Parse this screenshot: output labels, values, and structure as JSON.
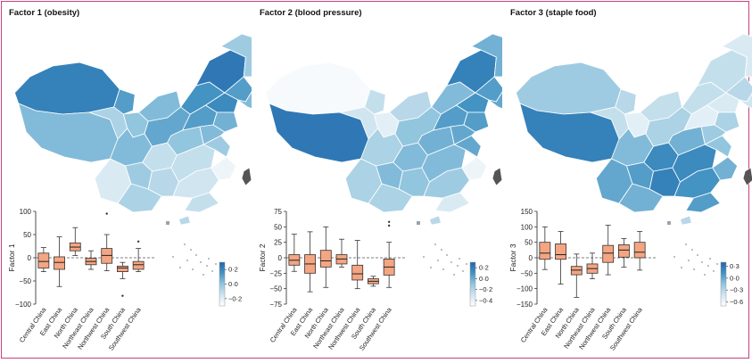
{
  "figure": {
    "accent_border_color": "#c8417e",
    "box_fill_color": "#f4a582",
    "colormap": [
      "#ffffff",
      "#d1e5f0",
      "#92c5de",
      "#4393c3",
      "#2166ac"
    ]
  },
  "chart_data": [
    {
      "type": "box",
      "title": "Factor 1 (obesity)",
      "ylabel": "Factor 1",
      "ylim": [
        -100,
        100
      ],
      "yticks": [
        "100",
        "50",
        "0",
        "−50",
        "−100"
      ],
      "categories": [
        "Central China",
        "East China",
        "North China",
        "Northeast China",
        "Northwest China",
        "South China",
        "Southwest China"
      ],
      "boxes": [
        {
          "min": -30,
          "q1": -22,
          "median": -8,
          "q3": 10,
          "max": 22,
          "outliers": []
        },
        {
          "min": -62,
          "q1": -25,
          "median": -10,
          "q3": 2,
          "max": 45,
          "outliers": []
        },
        {
          "min": 5,
          "q1": 15,
          "median": 23,
          "q3": 32,
          "max": 65,
          "outliers": []
        },
        {
          "min": -25,
          "q1": -15,
          "median": -8,
          "q3": -1,
          "max": 15,
          "outliers": []
        },
        {
          "min": -28,
          "q1": -12,
          "median": 5,
          "q3": 20,
          "max": 50,
          "outliers": [
            95
          ]
        },
        {
          "min": -45,
          "q1": -30,
          "median": -22,
          "q3": -18,
          "max": -10,
          "outliers": [
            -82
          ]
        },
        {
          "min": -30,
          "q1": -25,
          "median": -15,
          "q3": -8,
          "max": 20,
          "outliers": [
            35
          ]
        }
      ],
      "colorbar": {
        "ticks": [
          "0·2",
          "0·0",
          "−0·2"
        ],
        "min": -0.3,
        "max": 0.3
      }
    },
    {
      "type": "box",
      "title": "Factor 2 (blood pressure)",
      "ylabel": "Factor 2",
      "ylim": [
        -75,
        75
      ],
      "yticks": [
        "75",
        "50",
        "25",
        "0",
        "−25",
        "−50",
        "−75"
      ],
      "categories": [
        "Central China",
        "East China",
        "North China",
        "Northeast China",
        "Northwest China",
        "South China",
        "Southwest China"
      ],
      "boxes": [
        {
          "min": -22,
          "q1": -12,
          "median": -4,
          "q3": 5,
          "max": 38,
          "outliers": []
        },
        {
          "min": -55,
          "q1": -25,
          "median": -10,
          "q3": 5,
          "max": 42,
          "outliers": []
        },
        {
          "min": -48,
          "q1": -15,
          "median": -5,
          "q3": 12,
          "max": 50,
          "outliers": []
        },
        {
          "min": -15,
          "q1": -10,
          "median": -2,
          "q3": 5,
          "max": 30,
          "outliers": []
        },
        {
          "min": -50,
          "q1": -36,
          "median": -26,
          "q3": -12,
          "max": 28,
          "outliers": []
        },
        {
          "min": -46,
          "q1": -42,
          "median": -38,
          "q3": -34,
          "max": -30,
          "outliers": []
        },
        {
          "min": -48,
          "q1": -28,
          "median": -15,
          "q3": -2,
          "max": 25,
          "outliers": [
            52,
            58
          ]
        }
      ],
      "colorbar": {
        "ticks": [
          "0·2",
          "0·0",
          "−0·2",
          "−0·4"
        ],
        "min": -0.5,
        "max": 0.3
      }
    },
    {
      "type": "box",
      "title": "Factor 3 (staple food)",
      "ylabel": "Factor 3",
      "ylim": [
        -150,
        150
      ],
      "yticks": [
        "150",
        "100",
        "50",
        "0",
        "−50",
        "−100",
        "−150"
      ],
      "categories": [
        "Central China",
        "East China",
        "North China",
        "Northeast China",
        "Northwest China",
        "South China",
        "Southwest China"
      ],
      "boxes": [
        {
          "min": -38,
          "q1": -5,
          "median": 15,
          "q3": 50,
          "max": 100,
          "outliers": []
        },
        {
          "min": -85,
          "q1": -5,
          "median": 10,
          "q3": 45,
          "max": 85,
          "outliers": []
        },
        {
          "min": -128,
          "q1": -55,
          "median": -40,
          "q3": -28,
          "max": 12,
          "outliers": []
        },
        {
          "min": -68,
          "q1": -50,
          "median": -35,
          "q3": -20,
          "max": 15,
          "outliers": []
        },
        {
          "min": -55,
          "q1": -15,
          "median": 15,
          "q3": 40,
          "max": 105,
          "outliers": []
        },
        {
          "min": -30,
          "q1": 2,
          "median": 25,
          "q3": 42,
          "max": 62,
          "outliers": []
        },
        {
          "min": -40,
          "q1": 0,
          "median": 18,
          "q3": 50,
          "max": 85,
          "outliers": []
        }
      ],
      "colorbar": {
        "ticks": [
          "0·3",
          "0·0",
          "−0·3",
          "−0·6"
        ],
        "min": -0.7,
        "max": 0.4
      }
    }
  ]
}
